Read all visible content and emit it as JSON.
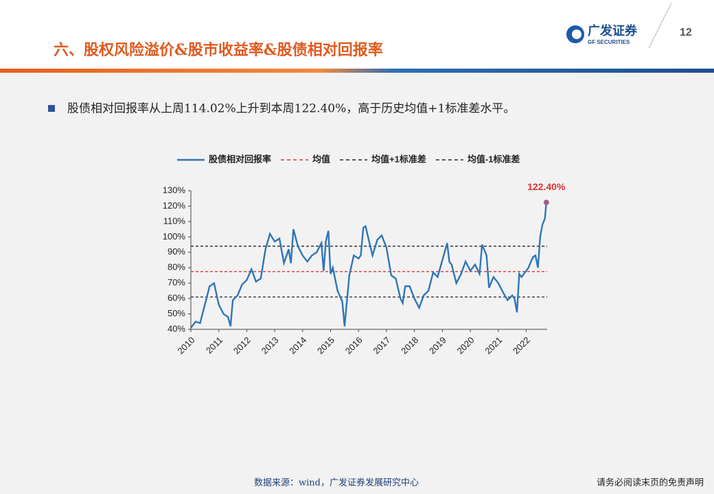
{
  "header": {
    "title": "六、股权风险溢价&股市收益率&股债相对回报率",
    "logo_cn": "广发证券",
    "logo_en": "GF SECURITIES",
    "page_number": "12"
  },
  "bullet": "股债相对回报率从上周114.02%上升到本周122.40%，高于历史均值+1标准差水平。",
  "footer": {
    "source": "数据来源：wind，广发证券发展研究中心",
    "disclaimer": "请务必阅读末页的免责声明"
  },
  "chart_data": {
    "type": "line",
    "x": [
      2010.0,
      2010.17,
      2010.33,
      2010.5,
      2010.67,
      2010.83,
      2011.0,
      2011.17,
      2011.33,
      2011.42,
      2011.5,
      2011.67,
      2011.83,
      2012.0,
      2012.17,
      2012.33,
      2012.5,
      2012.67,
      2012.83,
      2013.0,
      2013.17,
      2013.33,
      2013.5,
      2013.58,
      2013.67,
      2013.83,
      2014.0,
      2014.17,
      2014.33,
      2014.5,
      2014.67,
      2014.75,
      2014.83,
      2014.92,
      2015.0,
      2015.08,
      2015.25,
      2015.42,
      2015.5,
      2015.67,
      2015.83,
      2016.0,
      2016.08,
      2016.17,
      2016.25,
      2016.42,
      2016.5,
      2016.67,
      2016.83,
      2017.0,
      2017.17,
      2017.33,
      2017.5,
      2017.58,
      2017.67,
      2017.83,
      2018.0,
      2018.17,
      2018.33,
      2018.5,
      2018.67,
      2018.83,
      2019.0,
      2019.17,
      2019.25,
      2019.33,
      2019.5,
      2019.67,
      2019.83,
      2020.0,
      2020.17,
      2020.33,
      2020.42,
      2020.58,
      2020.67,
      2020.83,
      2021.0,
      2021.17,
      2021.33,
      2021.5,
      2021.58,
      2021.67,
      2021.75,
      2021.83,
      2022.0,
      2022.08,
      2022.17,
      2022.25,
      2022.33,
      2022.42,
      2022.5,
      2022.58,
      2022.67,
      2022.72
    ],
    "series": [
      {
        "name": "股债相对回报率",
        "color": "#2e75b6",
        "values": [
          41,
          45,
          44,
          56,
          68,
          70,
          56,
          50,
          48,
          42,
          59,
          62,
          69,
          72,
          79,
          71,
          73,
          92,
          102,
          97,
          99,
          83,
          92,
          83,
          105,
          94,
          88,
          84,
          88,
          90,
          96,
          78,
          97,
          104,
          76,
          80,
          65,
          58,
          42,
          75,
          88,
          86,
          88,
          106,
          107,
          94,
          88,
          98,
          101,
          93,
          75,
          73,
          60,
          57,
          68,
          68,
          60,
          54,
          62,
          65,
          77,
          74,
          85,
          96,
          84,
          82,
          70,
          76,
          84,
          78,
          82,
          76,
          95,
          88,
          67,
          74,
          70,
          64,
          59,
          62,
          60,
          51,
          76,
          74,
          78,
          80,
          84,
          87,
          88,
          80,
          100,
          108,
          112,
          122.4
        ]
      }
    ],
    "hlines": [
      {
        "name": "均值",
        "color": "#e03030",
        "value": 77.5
      },
      {
        "name": "均值+1标准差",
        "color": "#222222",
        "value": 94
      },
      {
        "name": "均值-1标准差",
        "color": "#222222",
        "value": 61
      }
    ],
    "annotation": "122.40%",
    "annotation_color": "#e03030",
    "xlim": [
      2010,
      2022.75
    ],
    "xticks": [
      2010,
      2011,
      2012,
      2013,
      2014,
      2015,
      2016,
      2017,
      2018,
      2019,
      2020,
      2021,
      2022
    ],
    "ylim": [
      40,
      130
    ],
    "yticks": [
      {
        "value": 40,
        "label": "40%"
      },
      {
        "value": 50,
        "label": "50%"
      },
      {
        "value": 60,
        "label": "60%"
      },
      {
        "value": 70,
        "label": "70%"
      },
      {
        "value": 80,
        "label": "80%"
      },
      {
        "value": 90,
        "label": "90%"
      },
      {
        "value": 100,
        "label": "100%"
      },
      {
        "value": 110,
        "label": "110%"
      },
      {
        "value": 120,
        "label": "120%"
      },
      {
        "value": 130,
        "label": "130%"
      }
    ]
  }
}
